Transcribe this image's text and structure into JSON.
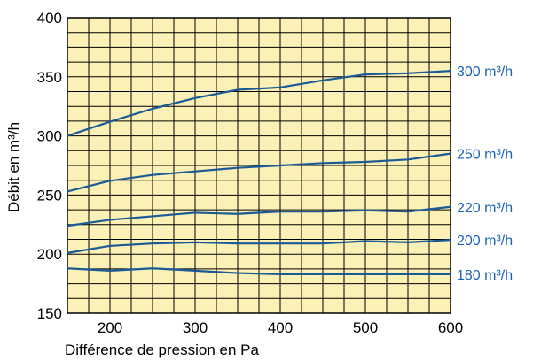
{
  "chart_data": {
    "type": "line",
    "xlabel": "Différence de pression en Pa",
    "ylabel": "Débit en m³/h",
    "xlim": [
      150,
      600
    ],
    "ylim": [
      150,
      400
    ],
    "x_ticks": [
      200,
      300,
      400,
      500,
      600
    ],
    "y_ticks": [
      150,
      200,
      250,
      300,
      350,
      400
    ],
    "grid": true,
    "grid_minor_x_step": 25,
    "grid_minor_y_step": 12.5,
    "legend": "right (labels at line ends)",
    "colors": {
      "background": "#fbf1b6",
      "grid": "#000000",
      "line": "#1c5a95",
      "label": "#1a63b4"
    },
    "x": [
      150,
      200,
      250,
      300,
      350,
      400,
      450,
      500,
      550,
      600
    ],
    "series": [
      {
        "name": "300 m³/h",
        "values": [
          300,
          312,
          323,
          332,
          339,
          341,
          347,
          352,
          353,
          355
        ]
      },
      {
        "name": "250 m³/h",
        "values": [
          253,
          262,
          267,
          270,
          273,
          275,
          277,
          278,
          280,
          285
        ]
      },
      {
        "name": "220 m³/h",
        "values": [
          224,
          229,
          232,
          235,
          234,
          236,
          236,
          237,
          236,
          240
        ]
      },
      {
        "name": "200 m³/h",
        "values": [
          201,
          207,
          209,
          210,
          209,
          209,
          209,
          211,
          210,
          212
        ]
      },
      {
        "name": "180 m³/h",
        "values": [
          188,
          186,
          188,
          186,
          184,
          183,
          183,
          183,
          183,
          183
        ]
      }
    ]
  }
}
